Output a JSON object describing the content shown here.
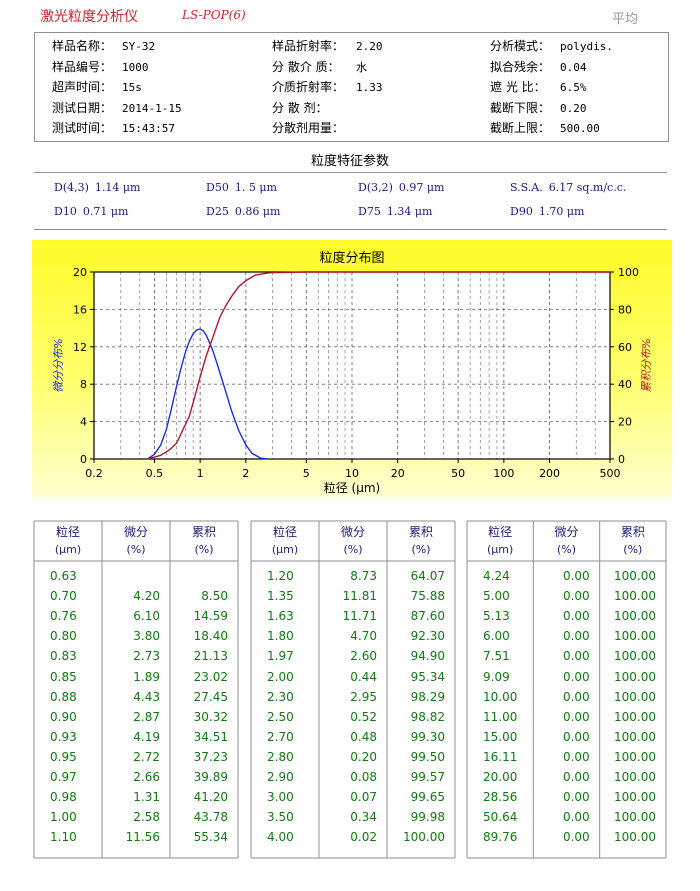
{
  "header": {
    "title": "激光粒度分析仪",
    "model": "LS-POP(6)",
    "mode": "平均"
  },
  "info": [
    {
      "label": "样品名称：",
      "value": "SY-32"
    },
    {
      "label": "样品编号：",
      "value": "1000"
    },
    {
      "label": "超声时间：",
      "value": "15s"
    },
    {
      "label": "测试日期：",
      "value": "2014-1-15"
    },
    {
      "label": "测试时间：",
      "value": "15:43:57"
    },
    {
      "label": "样品折射率：",
      "value": "2.20"
    },
    {
      "label": "分 散介 质：",
      "value": "水"
    },
    {
      "label": "介质折射率：",
      "value": "1.33"
    },
    {
      "label": "分   散   剂：",
      "value": ""
    },
    {
      "label": "分散剂用量：",
      "value": ""
    },
    {
      "label": "分析模式：",
      "value": "polydis."
    },
    {
      "label": "拟合残余：",
      "value": "0.04"
    },
    {
      "label": "遮 光 比：",
      "value": "6.5%"
    },
    {
      "label": "截断下限：",
      "value": "0.20"
    },
    {
      "label": "截断上限：",
      "value": "500.00"
    }
  ],
  "params_title": "粒度特征参数",
  "params": [
    {
      "name": "D(4,3)",
      "value": "1.14 μm"
    },
    {
      "name": "D50",
      "value": "1. 5 μm"
    },
    {
      "name": "D(3,2)",
      "value": "0.97 μm"
    },
    {
      "name": "S.S.A.",
      "value": "6.17 sq.m/c.c."
    },
    {
      "name": "D10",
      "value": "0.71 μm"
    },
    {
      "name": "D25",
      "value": "0.86 μm"
    },
    {
      "name": "D75",
      "value": "1.34 μm"
    },
    {
      "name": "D90",
      "value": "1.70 μm"
    }
  ],
  "chart_data": {
    "type": "line",
    "title": "粒度分布图",
    "xlabel": "粒径 (μm)",
    "ylabel_left": "微分分布%",
    "ylabel_right": "累积分布%",
    "x_scale": "log",
    "xlim": [
      0.2,
      500
    ],
    "xticks": [
      "0.2",
      "0.5",
      "1",
      "2",
      "5",
      "10",
      "20",
      "50",
      "100",
      "200",
      "500"
    ],
    "ylim_left": [
      0,
      20
    ],
    "yticks_left": [
      "0",
      "4",
      "8",
      "12",
      "16",
      "20"
    ],
    "ylim_right": [
      0,
      100
    ],
    "yticks_right": [
      "0",
      "20",
      "40",
      "60",
      "80",
      "100"
    ],
    "grid": true,
    "series": [
      {
        "axis": "left",
        "color": "#1e2fd6",
        "x": [
          0.45,
          0.5,
          0.55,
          0.6,
          0.65,
          0.7,
          0.75,
          0.8,
          0.85,
          0.9,
          0.95,
          1.0,
          1.05,
          1.1,
          1.2,
          1.3,
          1.4,
          1.5,
          1.6,
          1.7,
          1.8,
          2.0,
          2.2,
          2.5,
          2.8
        ],
        "y": [
          0.0,
          0.5,
          1.5,
          3.2,
          5.5,
          7.8,
          9.8,
          11.4,
          12.6,
          13.4,
          13.8,
          13.9,
          13.7,
          13.2,
          11.8,
          10.1,
          8.4,
          6.8,
          5.3,
          4.1,
          3.0,
          1.5,
          0.6,
          0.1,
          0.0
        ]
      },
      {
        "axis": "right",
        "color": "#b0182a",
        "x": [
          0.45,
          0.55,
          0.63,
          0.7,
          0.76,
          0.8,
          0.85,
          0.9,
          0.95,
          1.0,
          1.1,
          1.2,
          1.35,
          1.5,
          1.63,
          1.8,
          2.0,
          2.3,
          2.5,
          2.8,
          3.0,
          5.0,
          500
        ],
        "y": [
          0.0,
          2.0,
          5.0,
          8.5,
          14.59,
          18.4,
          23.02,
          30.32,
          37.23,
          43.78,
          55.34,
          64.07,
          75.88,
          83.0,
          87.6,
          92.3,
          95.34,
          98.29,
          98.82,
          99.5,
          99.65,
          100.0,
          100.0
        ]
      }
    ]
  },
  "table": {
    "headers": [
      {
        "top": "粒径",
        "unit": "(μm)"
      },
      {
        "top": "微分",
        "unit": "(%)"
      },
      {
        "top": "累积",
        "unit": "(%)"
      }
    ],
    "blocks": [
      [
        [
          "0.63",
          "",
          ""
        ],
        [
          "0.70",
          "4.20",
          "8.50"
        ],
        [
          "0.76",
          "6.10",
          "14.59"
        ],
        [
          "0.80",
          "3.80",
          "18.40"
        ],
        [
          "0.83",
          "2.73",
          "21.13"
        ],
        [
          "0.85",
          "1.89",
          "23.02"
        ],
        [
          "0.88",
          "4.43",
          "27.45"
        ],
        [
          "0.90",
          "2.87",
          "30.32"
        ],
        [
          "0.93",
          "4.19",
          "34.51"
        ],
        [
          "0.95",
          "2.72",
          "37.23"
        ],
        [
          "0.97",
          "2.66",
          "39.89"
        ],
        [
          "0.98",
          "1.31",
          "41.20"
        ],
        [
          "1.00",
          "2.58",
          "43.78"
        ],
        [
          "1.10",
          "11.56",
          "55.34"
        ]
      ],
      [
        [
          "1.20",
          "8.73",
          "64.07"
        ],
        [
          "1.35",
          "11.81",
          "75.88"
        ],
        [
          "1.63",
          "11.71",
          "87.60"
        ],
        [
          "1.80",
          "4.70",
          "92.30"
        ],
        [
          "1.97",
          "2.60",
          "94.90"
        ],
        [
          "2.00",
          "0.44",
          "95.34"
        ],
        [
          "2.30",
          "2.95",
          "98.29"
        ],
        [
          "2.50",
          "0.52",
          "98.82"
        ],
        [
          "2.70",
          "0.48",
          "99.30"
        ],
        [
          "2.80",
          "0.20",
          "99.50"
        ],
        [
          "2.90",
          "0.08",
          "99.57"
        ],
        [
          "3.00",
          "0.07",
          "99.65"
        ],
        [
          "3.50",
          "0.34",
          "99.98"
        ],
        [
          "4.00",
          "0.02",
          "100.00"
        ]
      ],
      [
        [
          "4.24",
          "0.00",
          "100.00"
        ],
        [
          "5.00",
          "0.00",
          "100.00"
        ],
        [
          "5.13",
          "0.00",
          "100.00"
        ],
        [
          "6.00",
          "0.00",
          "100.00"
        ],
        [
          "7.51",
          "0.00",
          "100.00"
        ],
        [
          "9.09",
          "0.00",
          "100.00"
        ],
        [
          "10.00",
          "0.00",
          "100.00"
        ],
        [
          "11.00",
          "0.00",
          "100.00"
        ],
        [
          "15.00",
          "0.00",
          "100.00"
        ],
        [
          "16.11",
          "0.00",
          "100.00"
        ],
        [
          "20.00",
          "0.00",
          "100.00"
        ],
        [
          "28.56",
          "0.00",
          "100.00"
        ],
        [
          "50.64",
          "0.00",
          "100.00"
        ],
        [
          "89.76",
          "0.00",
          "100.00"
        ]
      ]
    ]
  }
}
